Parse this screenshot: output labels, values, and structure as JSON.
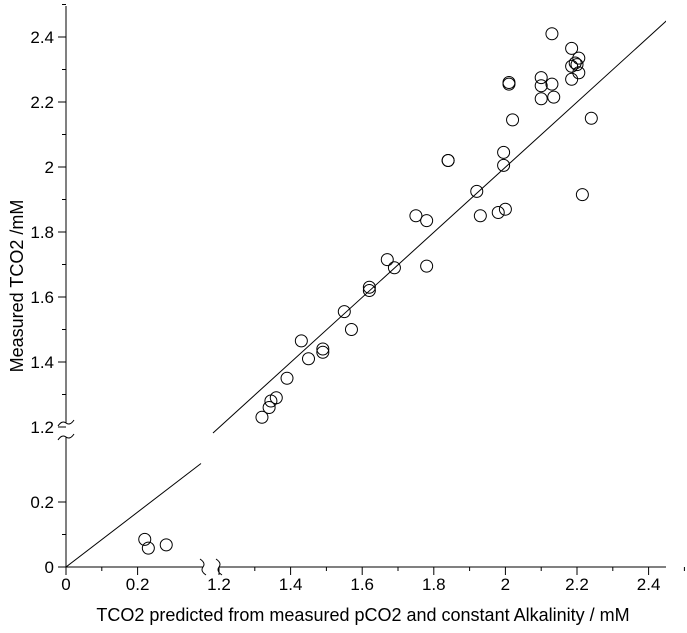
{
  "chart_data": {
    "type": "scatter",
    "xlabel": "TCO2 predicted from measured pCO2 and constant Alkalinity / mM",
    "ylabel": "Measured TCO2 /mM",
    "axis_breaks": {
      "x": [
        0.3,
        1.2
      ],
      "y": [
        0.3,
        1.2
      ]
    },
    "x_ticks_low": [
      "0",
      "0.2"
    ],
    "x_ticks_high": [
      "1.2",
      "1.4",
      "1.6",
      "1.8",
      "2",
      "2.2",
      "2.4"
    ],
    "y_ticks_low": [
      "0",
      "0.2"
    ],
    "y_ticks_high": [
      "1.2",
      "1.4",
      "1.6",
      "1.8",
      "2",
      "2.2",
      "2.4"
    ],
    "reference_line": {
      "from": [
        0,
        0
      ],
      "to": [
        2.5,
        2.5
      ]
    },
    "points": [
      [
        0.22,
        0.085
      ],
      [
        0.23,
        0.058
      ],
      [
        0.28,
        0.068
      ],
      [
        1.32,
        1.23
      ],
      [
        1.34,
        1.26
      ],
      [
        1.345,
        1.28
      ],
      [
        1.36,
        1.29
      ],
      [
        1.39,
        1.35
      ],
      [
        1.43,
        1.465
      ],
      [
        1.45,
        1.41
      ],
      [
        1.49,
        1.44
      ],
      [
        1.49,
        1.43
      ],
      [
        1.55,
        1.555
      ],
      [
        1.57,
        1.5
      ],
      [
        1.62,
        1.63
      ],
      [
        1.62,
        1.62
      ],
      [
        1.67,
        1.715
      ],
      [
        1.69,
        1.69
      ],
      [
        1.75,
        1.85
      ],
      [
        1.78,
        1.835
      ],
      [
        1.78,
        1.695
      ],
      [
        1.84,
        2.02
      ],
      [
        1.84,
        2.02
      ],
      [
        1.92,
        1.925
      ],
      [
        1.93,
        1.85
      ],
      [
        1.98,
        1.86
      ],
      [
        1.995,
        2.005
      ],
      [
        1.995,
        2.045
      ],
      [
        2.0,
        1.87
      ],
      [
        2.01,
        2.26
      ],
      [
        2.01,
        2.255
      ],
      [
        2.02,
        2.145
      ],
      [
        2.1,
        2.21
      ],
      [
        2.1,
        2.25
      ],
      [
        2.1,
        2.275
      ],
      [
        2.13,
        2.41
      ],
      [
        2.13,
        2.255
      ],
      [
        2.135,
        2.215
      ],
      [
        2.185,
        2.27
      ],
      [
        2.185,
        2.31
      ],
      [
        2.185,
        2.365
      ],
      [
        2.195,
        2.32
      ],
      [
        2.2,
        2.315
      ],
      [
        2.205,
        2.335
      ],
      [
        2.205,
        2.29
      ],
      [
        2.215,
        1.915
      ],
      [
        2.24,
        2.15
      ]
    ]
  }
}
